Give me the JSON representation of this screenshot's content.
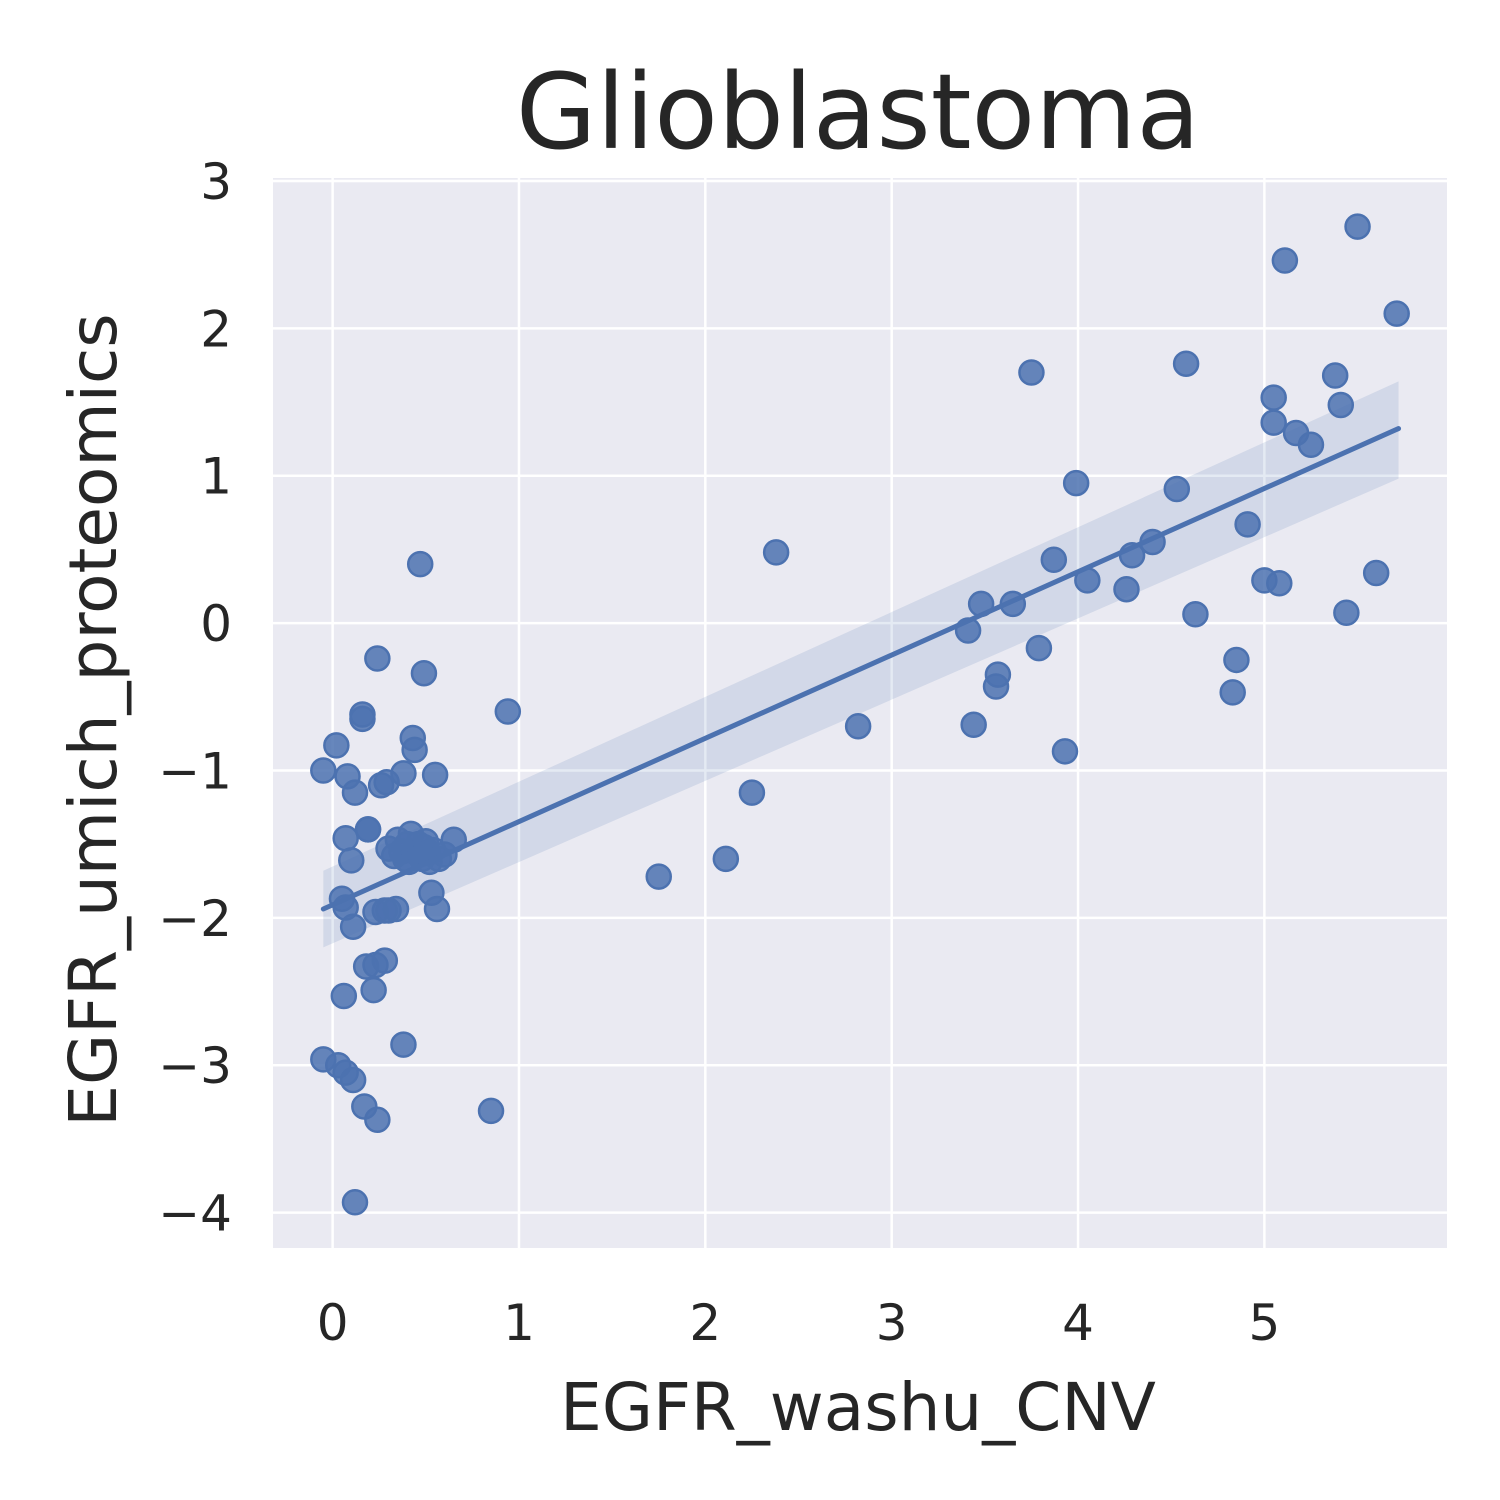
{
  "chart_data": {
    "type": "scatter",
    "title": "Glioblastoma",
    "xlabel": "EGFR_washu_CNV",
    "ylabel": "EGFR_umich_proteomics",
    "xlim": [
      -0.32,
      5.98
    ],
    "ylim": [
      -4.24,
      3.02
    ],
    "xticks": [
      0,
      1,
      2,
      3,
      4,
      5
    ],
    "yticks": [
      -4,
      -3,
      -2,
      -1,
      0,
      1,
      2,
      3
    ],
    "grid": true,
    "background": "#eaeaf2",
    "point_color": "#4c72b0",
    "regression": {
      "x": [
        -0.05,
        5.72
      ],
      "y": [
        -1.94,
        1.32
      ],
      "ci_upper_at_x0": -1.68,
      "ci_lower_at_x0": -2.2,
      "ci_upper_at_x1": 1.64,
      "ci_lower_at_x1": 0.98
    },
    "points": {
      "x": [
        -0.05,
        0.02,
        0.08,
        0.12,
        0.16,
        0.26,
        0.29,
        0.38,
        0.43,
        0.44,
        0.55,
        0.16,
        0.19,
        0.24,
        0.07,
        0.1,
        0.19,
        0.3,
        0.33,
        0.35,
        0.37,
        0.39,
        0.4,
        0.41,
        0.42,
        0.44,
        0.46,
        0.48,
        0.49,
        0.5,
        0.51,
        0.52,
        0.54,
        0.57,
        0.6,
        0.65,
        0.05,
        0.07,
        0.11,
        0.23,
        0.28,
        0.3,
        0.34,
        0.53,
        0.56,
        0.18,
        0.23,
        0.28,
        0.22,
        0.06,
        0.38,
        -0.05,
        0.03,
        0.07,
        0.11,
        0.17,
        0.24,
        0.12,
        0.85,
        0.47,
        0.49,
        0.94,
        2.38,
        2.82,
        2.25,
        2.11,
        1.75,
        3.41,
        3.44,
        3.48,
        3.56,
        3.57,
        3.65,
        3.75,
        3.79,
        3.87,
        3.93,
        3.99,
        4.05,
        4.26,
        4.29,
        4.4,
        4.53,
        4.58,
        4.63,
        4.83,
        4.85,
        4.91,
        5.0,
        5.05,
        5.05,
        5.08,
        5.11,
        5.17,
        5.25,
        5.38,
        5.41,
        5.44,
        5.5,
        5.6,
        5.71
      ],
      "y": [
        -1.0,
        -0.83,
        -1.04,
        -1.15,
        -0.62,
        -1.1,
        -1.08,
        -1.02,
        -0.78,
        -0.86,
        -1.03,
        -0.65,
        -1.4,
        -0.24,
        -1.46,
        -1.61,
        -1.4,
        -1.53,
        -1.58,
        -1.47,
        -1.55,
        -1.6,
        -1.5,
        -1.62,
        -1.43,
        -1.55,
        -1.5,
        -1.6,
        -1.52,
        -1.48,
        -1.56,
        -1.62,
        -1.54,
        -1.6,
        -1.57,
        -1.47,
        -1.87,
        -1.93,
        -2.06,
        -1.96,
        -1.95,
        -1.95,
        -1.94,
        -1.83,
        -1.94,
        -2.33,
        -2.32,
        -2.29,
        -2.49,
        -2.53,
        -2.86,
        -2.96,
        -3.0,
        -3.05,
        -3.1,
        -3.28,
        -3.37,
        -3.93,
        -3.31,
        0.4,
        -0.34,
        -0.6,
        0.48,
        -0.7,
        -1.15,
        -1.6,
        -1.72,
        -0.05,
        -0.69,
        0.13,
        -0.43,
        -0.35,
        0.13,
        1.7,
        -0.17,
        0.43,
        -0.87,
        0.95,
        0.29,
        0.23,
        0.46,
        0.55,
        0.91,
        1.76,
        0.06,
        -0.47,
        -0.25,
        0.67,
        0.29,
        1.53,
        1.36,
        0.27,
        2.46,
        1.29,
        1.21,
        1.68,
        1.48,
        0.07,
        2.69,
        0.34,
        2.1
      ]
    }
  }
}
